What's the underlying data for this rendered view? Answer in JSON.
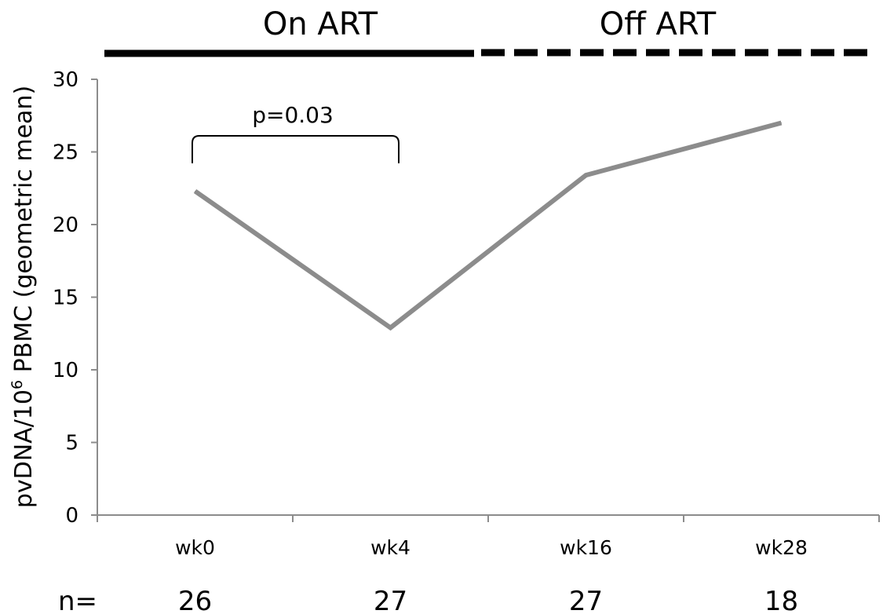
{
  "chart_data": {
    "type": "line",
    "categories": [
      "wk0",
      "wk4",
      "wk16",
      "wk28"
    ],
    "series": [
      {
        "values": [
          22.3,
          12.9,
          23.4,
          27.0
        ],
        "color": "#8c8c8c"
      }
    ],
    "ylabel_parts": [
      "pvDNA/10",
      "6",
      " PBMC (geometric mean)"
    ],
    "ylim": [
      0,
      30
    ],
    "yticks": [
      "0",
      "5",
      "10",
      "15",
      "20",
      "25",
      "30"
    ],
    "grid": false,
    "phases": [
      {
        "label": "On ART",
        "style": "solid"
      },
      {
        "label": "Off ART",
        "style": "dashed"
      }
    ],
    "annotation": {
      "text": "p=0.03"
    },
    "n_row": {
      "label": "n=",
      "values": [
        "26",
        "27",
        "27",
        "18"
      ]
    }
  }
}
